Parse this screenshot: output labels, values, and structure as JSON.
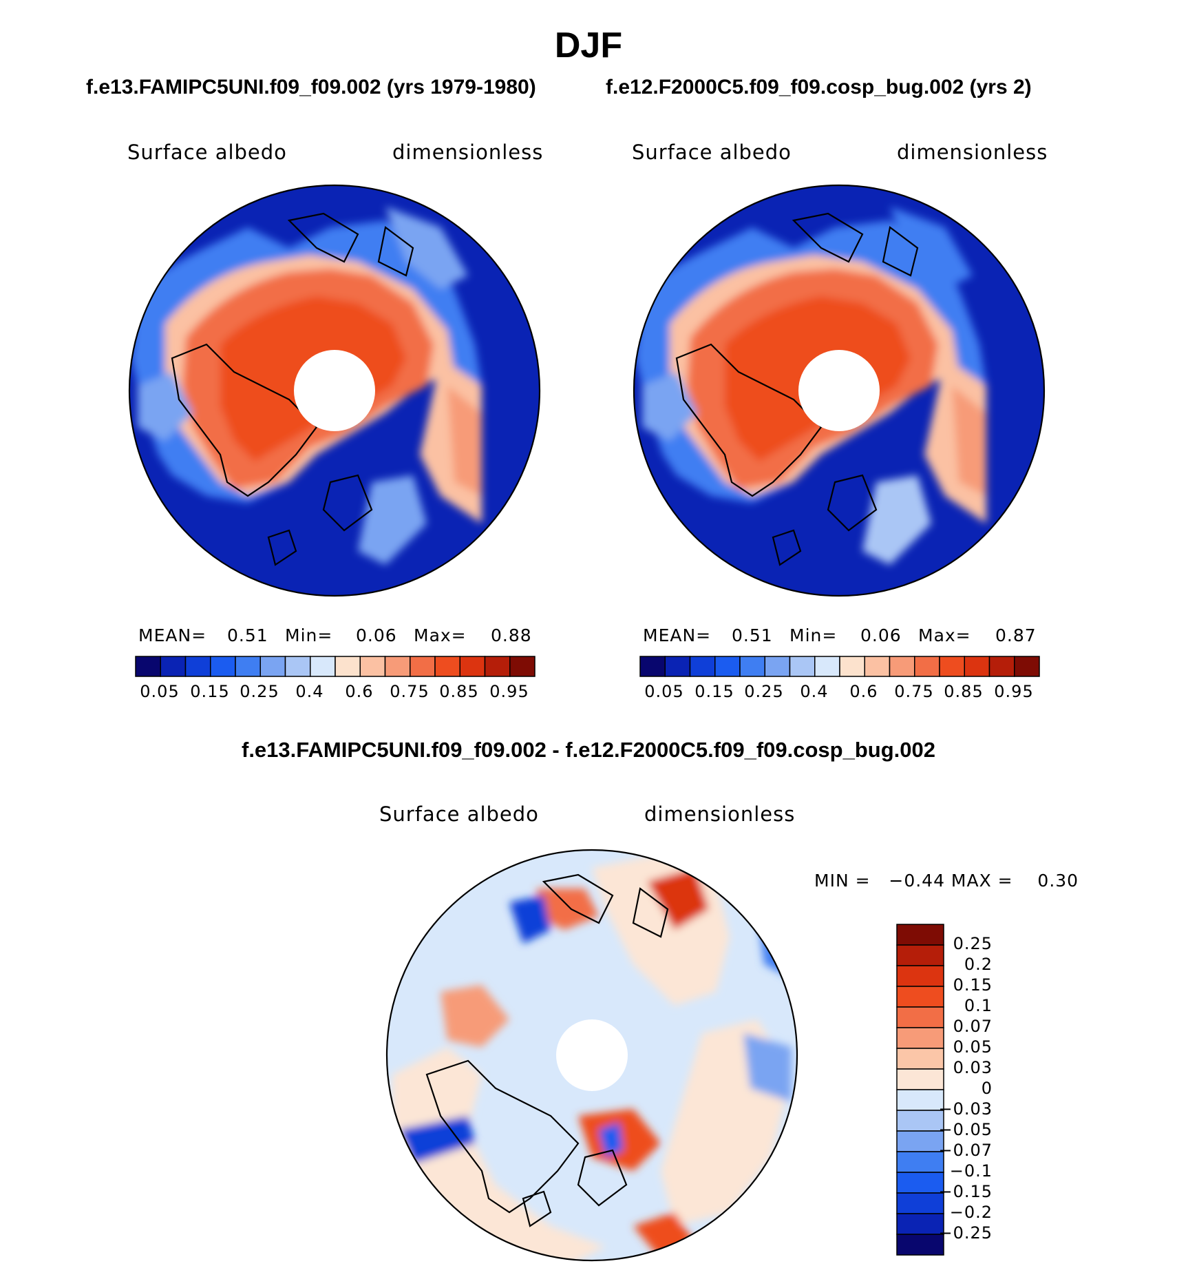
{
  "page_title": "DJF",
  "subtitle_left": "f.e13.FAMIPC5UNI.f09_f09.002 (yrs 1979-1980)",
  "subtitle_right": "f.e12.F2000C5.f09_f09.cosp_bug.002 (yrs 2)",
  "diff_title": "f.e13.FAMIPC5UNI.f09_f09.002 - f.e12.F2000C5.f09_f09.cosp_bug.002",
  "colors": {
    "abs_scale": [
      "#08066e",
      "#0a23b4",
      "#0f3fd8",
      "#1b5cf0",
      "#3f7ef2",
      "#7aa4f2",
      "#aac6f5",
      "#d8e8fb",
      "#fce2cd",
      "#fbc1a3",
      "#f79b78",
      "#f26e46",
      "#ee4d1f",
      "#dc3410",
      "#b51e09",
      "#7e0c04"
    ],
    "diff_scale": [
      "#08066e",
      "#0a23b4",
      "#0f3fd8",
      "#1b5cf0",
      "#3f7ef2",
      "#7aa4f2",
      "#aac6f5",
      "#d8e8fb",
      "#fce6d6",
      "#fbc6a8",
      "#f79b78",
      "#f26e46",
      "#ee4d1f",
      "#dc3410",
      "#b51e09",
      "#7e0c04"
    ]
  },
  "panels": [
    {
      "id": "left",
      "variable": "Surface albedo",
      "units": "dimensionless",
      "mean_label": "MEAN=",
      "mean": "0.51",
      "min_label": "Min=",
      "min": "0.06",
      "max_label": "Max=",
      "max": "0.88",
      "colorbar_labels": [
        "0.05",
        "0.15",
        "0.25",
        "0.4",
        "0.6",
        "0.75",
        "0.85",
        "0.95"
      ]
    },
    {
      "id": "right",
      "variable": "Surface albedo",
      "units": "dimensionless",
      "mean_label": "MEAN=",
      "mean": "0.51",
      "min_label": "Min=",
      "min": "0.06",
      "max_label": "Max=",
      "max": "0.87",
      "colorbar_labels": [
        "0.05",
        "0.15",
        "0.25",
        "0.4",
        "0.6",
        "0.75",
        "0.85",
        "0.95"
      ]
    }
  ],
  "diff_panel": {
    "variable": "Surface albedo",
    "units": "dimensionless",
    "minmax_text": "MIN =   −0.44 MAX =    0.30",
    "colorbar_labels": [
      "0.25",
      "0.2",
      "0.15",
      "0.1",
      "0.07",
      "0.05",
      "0.03",
      "0",
      "−0.03",
      "−0.05",
      "−0.07",
      "−0.1",
      "−0.15",
      "−0.2",
      "−0.25"
    ]
  }
}
